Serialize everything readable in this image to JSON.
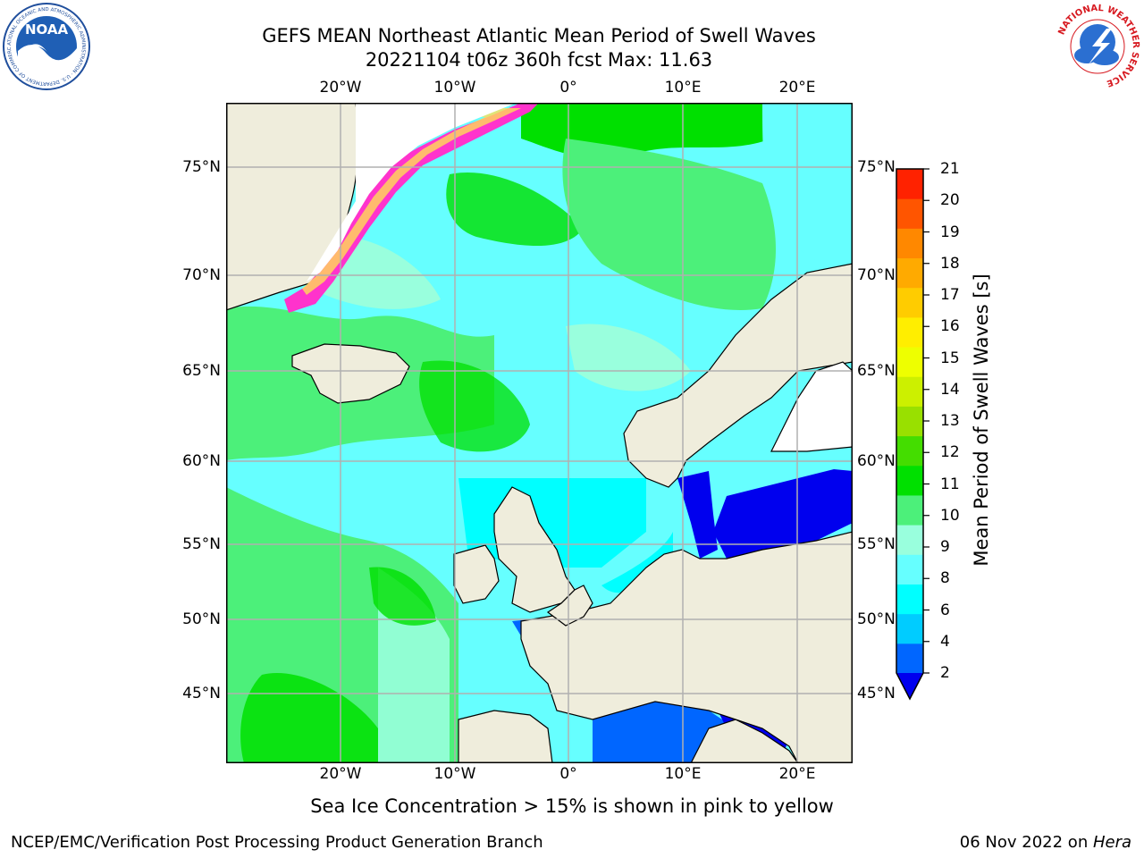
{
  "title": {
    "line1": "GEFS MEAN Northeast Atlantic Mean Period of Swell Waves",
    "line2": "20221104 t06z 360h fcst   Max: 11.63"
  },
  "logos": {
    "noaa_text": "NOAA",
    "noaa_ring": "NATIONAL OCEANIC AND ATMOSPHERIC ADMINISTRATION · U.S. DEPARTMENT OF COMMERCE",
    "nws_ring": "NATIONAL WEATHER SERVICE"
  },
  "map": {
    "lon_labels": [
      "20°W",
      "10°W",
      "0°",
      "10°E",
      "20°E"
    ],
    "lat_labels": [
      "75°N",
      "70°N",
      "65°N",
      "60°N",
      "55°N",
      "50°N",
      "45°N"
    ],
    "grid": true
  },
  "colorbar": {
    "title": "Mean Period of Swell Waves [s]",
    "ticks": [
      "2",
      "4",
      "6",
      "8",
      "9",
      "10",
      "11",
      "12",
      "13",
      "14",
      "15",
      "16",
      "17",
      "18",
      "19",
      "20",
      "21"
    ],
    "bands": [
      "#0066ff",
      "#00ccff",
      "#00ffff",
      "#66ffff",
      "#99ffdd",
      "#4cf07a",
      "#00e000",
      "#44dd00",
      "#99e000",
      "#ccf000",
      "#eeff00",
      "#ffee00",
      "#ffcc00",
      "#ffaa00",
      "#ff8800",
      "#ff5500",
      "#ff2200",
      "#ff0000"
    ],
    "under_color": "#0000ee"
  },
  "colors": {
    "land": "#efeddc",
    "ice_pink": "#ff33cc",
    "ice_yellow": "#ffdd55"
  },
  "caption": "Sea Ice Concentration > 15% is shown in pink to yellow",
  "footer": {
    "left": "NCEP/EMC/Verification Post Processing Product Generation Branch",
    "date": "06 Nov 2022 on ",
    "host": "Hera"
  }
}
